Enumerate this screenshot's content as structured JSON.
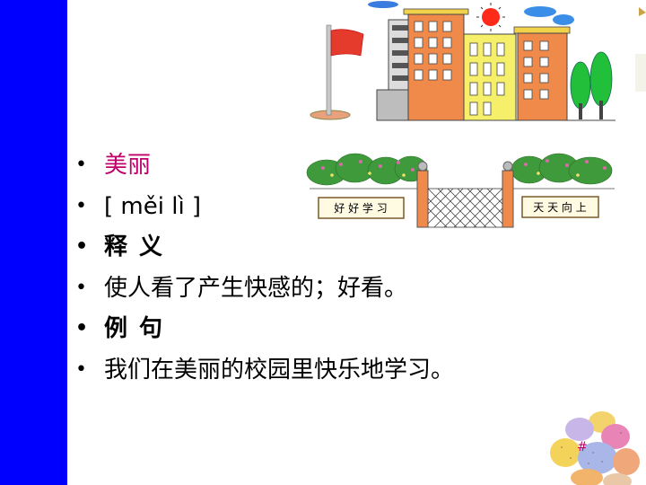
{
  "slide": {
    "bullets": [
      {
        "text": "美丽",
        "style": "accent"
      },
      {
        "text": "[ měi lì ]",
        "style": "normal"
      },
      {
        "text": "释 义",
        "style": "bold"
      },
      {
        "text": "使人看了产生快感的；好看。",
        "style": "normal"
      },
      {
        "text": "例 句",
        "style": "bold"
      },
      {
        "text": "我们在美丽的校园里快乐地学习。",
        "style": "normal"
      }
    ],
    "bullet_symbol": "•",
    "gate_signs": {
      "left": "好 好 学 习",
      "right": "天 天 向 上"
    },
    "slide_number": "#"
  },
  "colors": {
    "sidebar": "#0000ff",
    "accent": "#c0006a"
  }
}
